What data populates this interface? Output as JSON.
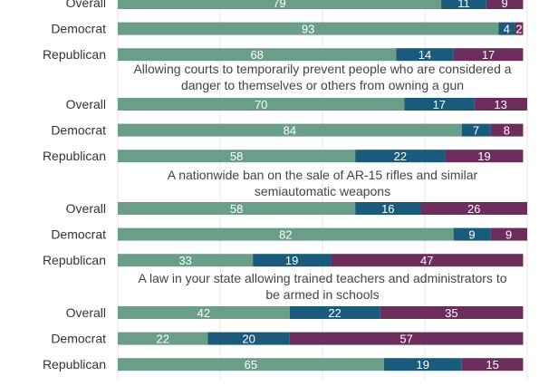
{
  "chart_data": {
    "type": "bar",
    "orientation": "horizontal",
    "stacked": true,
    "xlim": [
      0,
      100
    ],
    "grid": true,
    "colors": [
      "#6b9e88",
      "#1a5a7a",
      "#6b2d5c"
    ],
    "groups": [
      {
        "title_lines": [],
        "rows": [
          {
            "label": "Overall",
            "values": [
              79,
              11,
              9
            ]
          },
          {
            "label": "Democrat",
            "values": [
              93,
              4,
              2
            ]
          },
          {
            "label": "Republican",
            "values": [
              68,
              14,
              17
            ]
          }
        ]
      },
      {
        "title_lines": [
          "Allowing courts to temporarily prevent people who are considered a",
          "danger to themselves or others  from owning a gun"
        ],
        "rows": [
          {
            "label": "Overall",
            "values": [
              70,
              17,
              13
            ]
          },
          {
            "label": "Democrat",
            "values": [
              84,
              7,
              8
            ]
          },
          {
            "label": "Republican",
            "values": [
              58,
              22,
              19
            ]
          }
        ]
      },
      {
        "title_lines": [
          "A nationwide ban on the sale of AR-15 rifles and similar",
          "semiautomatic weapons"
        ],
        "rows": [
          {
            "label": "Overall",
            "values": [
              58,
              16,
              26
            ]
          },
          {
            "label": "Democrat",
            "values": [
              82,
              9,
              9
            ]
          },
          {
            "label": "Republican",
            "values": [
              33,
              19,
              47
            ]
          }
        ]
      },
      {
        "title_lines": [
          "A law in your state allowing trained teachers and administrators to",
          "be armed in schools"
        ],
        "rows": [
          {
            "label": "Overall",
            "values": [
              42,
              22,
              35
            ]
          },
          {
            "label": "Democrat",
            "values": [
              22,
              20,
              57
            ]
          },
          {
            "label": "Republican",
            "values": [
              65,
              19,
              15
            ]
          }
        ]
      }
    ]
  }
}
